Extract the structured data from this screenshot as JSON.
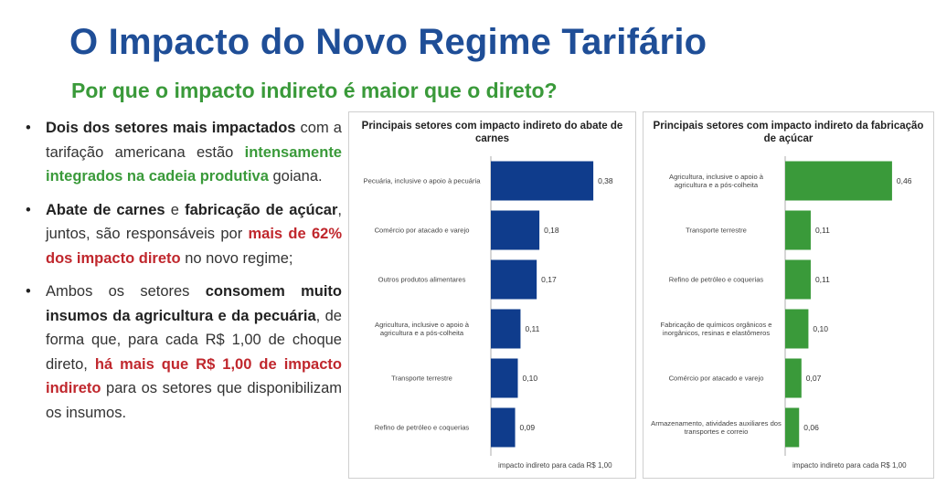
{
  "header": {
    "title": "O Impacto do Novo Regime Tarifário",
    "subtitle": "Por que o impacto indireto é maior que o direto?"
  },
  "bullets": [
    {
      "parts": [
        {
          "text": "Dois dos setores mais impactados",
          "style": "bold"
        },
        {
          "text": " com a tarifação americana estão ",
          "style": "normal"
        },
        {
          "text": "intensamente integrados na cadeia produtiva",
          "style": "green"
        },
        {
          "text": " goiana.",
          "style": "normal"
        }
      ]
    },
    {
      "parts": [
        {
          "text": "Abate de carnes",
          "style": "bold"
        },
        {
          "text": " e ",
          "style": "normal"
        },
        {
          "text": "fabricação de açúcar",
          "style": "bold"
        },
        {
          "text": ", juntos, são responsáveis por ",
          "style": "normal"
        },
        {
          "text": "mais de 62% dos impacto direto",
          "style": "red"
        },
        {
          "text": " no novo regime;",
          "style": "normal"
        }
      ]
    },
    {
      "parts": [
        {
          "text": "Ambos os setores ",
          "style": "normal"
        },
        {
          "text": "consomem muito insumos da agricultura e da pecuária",
          "style": "bold"
        },
        {
          "text": ", de forma que, para cada R$ 1,00 de choque direto, ",
          "style": "normal"
        },
        {
          "text": "há mais que R$ 1,00 de impacto indireto",
          "style": "red"
        },
        {
          "text": " para os setores que disponibilizam os insumos.",
          "style": "normal"
        }
      ]
    }
  ],
  "colors": {
    "title": "#1f4e97",
    "subtitle": "#3a9a3a",
    "chart1_bar": "#0f3c8c",
    "chart2_bar": "#3a9a3a",
    "highlight_red": "#c0272d"
  },
  "chart_data": [
    {
      "type": "bar",
      "orientation": "horizontal",
      "title": "Principais setores com impacto indireto do abate de carnes",
      "xlabel": "impacto indireto para cada R$ 1,00",
      "categories": [
        "Pecuária, inclusive o apoio à pecuária",
        "Comércio por atacado e varejo",
        "Outros produtos alimentares",
        "Agricultura, inclusive o apoio à agricultura e a pós-colheita",
        "Transporte terrestre",
        "Refino de petróleo e coquerias"
      ],
      "values": [
        0.38,
        0.18,
        0.17,
        0.11,
        0.1,
        0.09
      ],
      "value_labels": [
        "0,38",
        "0,18",
        "0,17",
        "0,11",
        "0,10",
        "0,09"
      ],
      "color": "#0f3c8c",
      "xlim": [
        0,
        0.4
      ],
      "grid": false
    },
    {
      "type": "bar",
      "orientation": "horizontal",
      "title": "Principais setores com impacto indireto da fabricação de açúcar",
      "xlabel": "impacto indireto para cada R$ 1,00",
      "categories": [
        "Agricultura, inclusive o apoio à agricultura e a pós-colheita",
        "Transporte terrestre",
        "Refino de petróleo e coquerias",
        "Fabricação de químicos orgânicos e inorgânicos, resinas e elastômeros",
        "Comércio por atacado e varejo",
        "Armazenamento, atividades auxiliares dos transportes e correio"
      ],
      "values": [
        0.46,
        0.11,
        0.11,
        0.1,
        0.07,
        0.06
      ],
      "value_labels": [
        "0,46",
        "0,11",
        "0,11",
        "0,10",
        "0,07",
        "0,06"
      ],
      "color": "#3a9a3a",
      "xlim": [
        0,
        0.48
      ],
      "grid": false
    }
  ]
}
